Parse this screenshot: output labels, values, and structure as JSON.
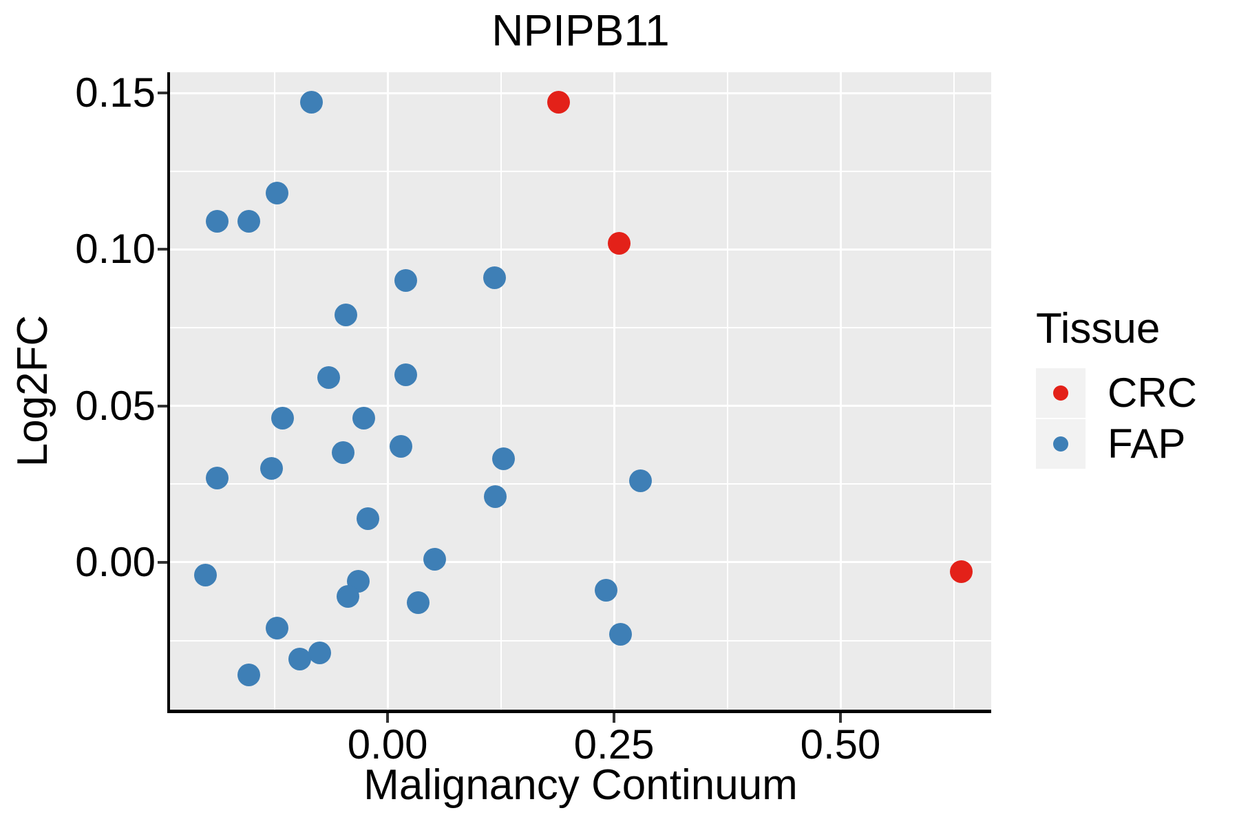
{
  "title": "NPIPB11",
  "chart_data": {
    "type": "scatter",
    "title": "NPIPB11",
    "xlabel": "Malignancy Continuum",
    "ylabel": "Log2FC",
    "xlim": [
      -0.2402,
      0.6664
    ],
    "ylim": [
      -0.0471,
      0.1566
    ],
    "grid": "major and minor white gridlines on grey panel",
    "panel_background": "#EBEBEB",
    "x_ticks": {
      "values": [
        0.0,
        0.25,
        0.5
      ],
      "labels": [
        "0.00",
        "0.25",
        "0.50"
      ]
    },
    "y_ticks": {
      "values": [
        0.15,
        0.1,
        0.05,
        0.0
      ],
      "labels": [
        "0.15",
        "0.10",
        "0.05",
        "0.00"
      ]
    },
    "legend": {
      "title": "Tissue",
      "position": "right",
      "entries": [
        {
          "label": "CRC",
          "color": "#E32119"
        },
        {
          "label": "FAP",
          "color": "#3E7FB6"
        }
      ]
    },
    "series": [
      {
        "name": "CRC",
        "color": "#E32119",
        "points": [
          [
            0.189,
            0.147
          ],
          [
            0.256,
            0.102
          ],
          [
            0.633,
            -0.003
          ]
        ]
      },
      {
        "name": "FAP",
        "color": "#3E7FB6",
        "points": [
          [
            -0.084,
            0.147
          ],
          [
            -0.122,
            0.118
          ],
          [
            -0.188,
            0.109
          ],
          [
            -0.153,
            0.109
          ],
          [
            0.02,
            0.09
          ],
          [
            0.118,
            0.091
          ],
          [
            -0.046,
            0.079
          ],
          [
            -0.065,
            0.059
          ],
          [
            0.02,
            0.06
          ],
          [
            -0.116,
            0.046
          ],
          [
            -0.026,
            0.046
          ],
          [
            -0.049,
            0.035
          ],
          [
            0.015,
            0.037
          ],
          [
            -0.128,
            0.03
          ],
          [
            -0.188,
            0.027
          ],
          [
            0.128,
            0.033
          ],
          [
            0.119,
            0.021
          ],
          [
            -0.022,
            0.014
          ],
          [
            -0.201,
            -0.004
          ],
          [
            0.052,
            0.001
          ],
          [
            -0.032,
            -0.006
          ],
          [
            -0.044,
            -0.011
          ],
          [
            0.034,
            -0.013
          ],
          [
            -0.122,
            -0.021
          ],
          [
            -0.075,
            -0.029
          ],
          [
            -0.097,
            -0.031
          ],
          [
            -0.153,
            -0.036
          ],
          [
            0.279,
            0.026
          ],
          [
            0.241,
            -0.009
          ],
          [
            0.257,
            -0.023
          ]
        ]
      }
    ]
  }
}
